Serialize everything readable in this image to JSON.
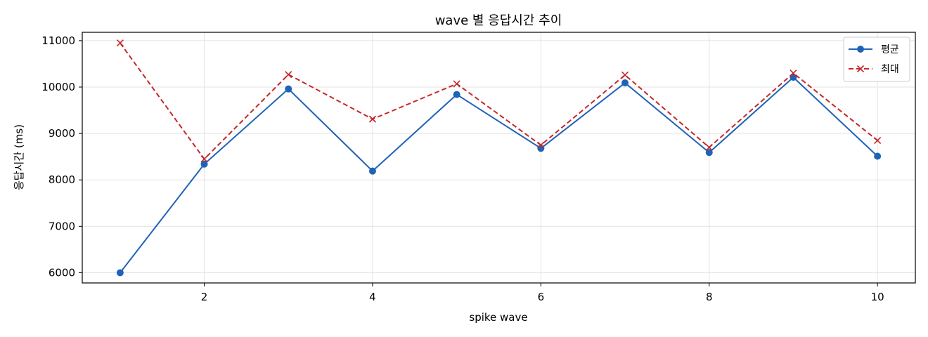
{
  "chart_data": {
    "type": "line",
    "title": "wave 별 응답시간 추이",
    "xlabel": "spike wave",
    "ylabel": "응답시간 (ms)",
    "x": [
      1,
      2,
      3,
      4,
      5,
      6,
      7,
      8,
      9,
      10
    ],
    "xlim": [
      0.55,
      10.45
    ],
    "ylim": [
      5780,
      11180
    ],
    "xticks": [
      2,
      4,
      6,
      8,
      10
    ],
    "yticks": [
      6000,
      7000,
      8000,
      9000,
      10000,
      11000
    ],
    "grid": true,
    "legend_position": "top-right",
    "series": [
      {
        "name": "평균",
        "values": [
          6000,
          8340,
          9960,
          8190,
          9840,
          8680,
          10090,
          8590,
          10210,
          8510
        ],
        "color": "#1f63b8",
        "line_style": "solid",
        "marker": "circle"
      },
      {
        "name": "최대",
        "values": [
          10950,
          8450,
          10270,
          9310,
          10070,
          8750,
          10260,
          8700,
          10300,
          8850
        ],
        "color": "#c62828",
        "line_style": "dashed",
        "marker": "x"
      }
    ]
  }
}
